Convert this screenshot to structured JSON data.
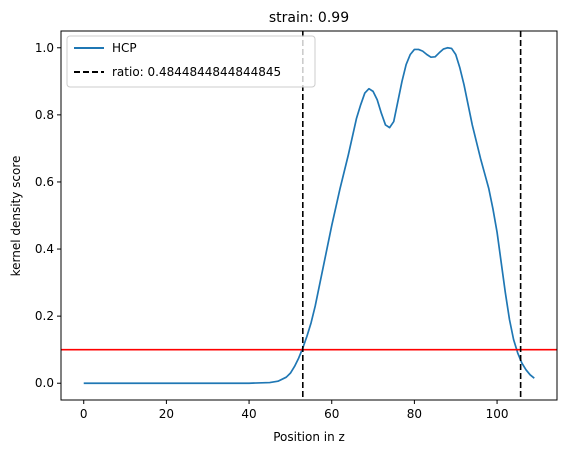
{
  "chart_data": {
    "type": "line",
    "title": "strain: 0.99",
    "xlabel": "Position in z",
    "ylabel": "kernel density score",
    "xlim": [
      -5.5,
      114.5
    ],
    "ylim": [
      -0.05,
      1.05
    ],
    "xticks": [
      0,
      20,
      40,
      60,
      80,
      100
    ],
    "yticks": [
      0.0,
      0.2,
      0.4,
      0.6,
      0.8,
      1.0
    ],
    "xtick_labels": [
      "0",
      "20",
      "40",
      "60",
      "80",
      "100"
    ],
    "ytick_labels": [
      "0.0",
      "0.2",
      "0.4",
      "0.6",
      "0.8",
      "1.0"
    ],
    "grid": false,
    "legend_position": "upper-left",
    "series": [
      {
        "name": "HCP",
        "color": "#1f77b4",
        "style": "solid",
        "x": [
          0,
          10,
          20,
          30,
          40,
          45,
          47,
          49,
          50,
          51,
          52,
          53,
          54,
          55,
          56,
          57,
          58,
          59,
          60,
          62,
          64,
          66,
          67,
          68,
          69,
          70,
          71,
          72,
          73,
          74,
          75,
          76,
          77,
          78,
          79,
          80,
          81,
          82,
          83,
          84,
          85,
          86,
          87,
          88,
          89,
          90,
          91,
          92,
          93,
          94,
          95,
          96,
          97,
          98,
          99,
          100,
          101,
          102,
          103,
          104,
          105,
          106,
          107,
          108,
          109
        ],
        "y": [
          0.0,
          0.0,
          0.0,
          0.0,
          0.0,
          0.002,
          0.006,
          0.018,
          0.03,
          0.05,
          0.075,
          0.105,
          0.14,
          0.18,
          0.23,
          0.29,
          0.35,
          0.41,
          0.47,
          0.58,
          0.68,
          0.79,
          0.83,
          0.865,
          0.878,
          0.87,
          0.845,
          0.805,
          0.77,
          0.762,
          0.78,
          0.84,
          0.9,
          0.95,
          0.98,
          0.995,
          0.995,
          0.99,
          0.98,
          0.972,
          0.973,
          0.985,
          0.996,
          1.0,
          0.998,
          0.98,
          0.94,
          0.89,
          0.83,
          0.77,
          0.72,
          0.67,
          0.625,
          0.58,
          0.52,
          0.45,
          0.36,
          0.27,
          0.19,
          0.13,
          0.09,
          0.06,
          0.04,
          0.025,
          0.015
        ]
      }
    ],
    "vlines": [
      {
        "name": "ratio: 0.4844844844844845",
        "x": 53,
        "color": "#000000",
        "style": "dashed",
        "in_legend": true
      },
      {
        "x": 105.7,
        "color": "#000000",
        "style": "dashed",
        "in_legend": false
      }
    ],
    "hlines": [
      {
        "y": 0.1,
        "color": "#ff0000",
        "style": "solid"
      }
    ]
  }
}
